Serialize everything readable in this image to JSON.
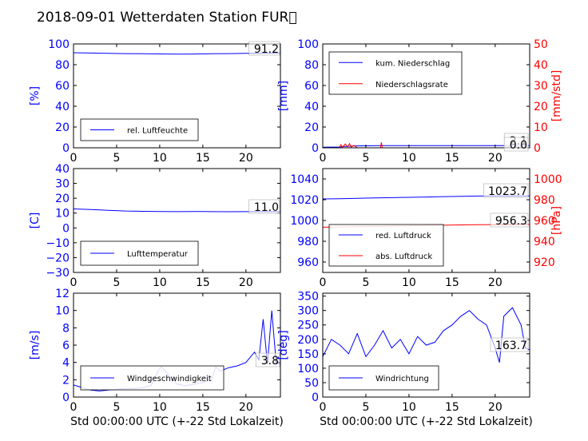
{
  "figure": {
    "title": "2018-09-01 Wetterdaten Station FUR\u0000",
    "xlabel": "Std 00:00:00 UTC (+-22 Std Lokalzeit)"
  },
  "colors": {
    "primary": "#0000ff",
    "secondary": "#ff0000",
    "axis": "#000000"
  },
  "chart_data": [
    {
      "type": "line",
      "panel": "top-left",
      "xlim": [
        0,
        24
      ],
      "xticks": [
        "0",
        "5",
        "10",
        "15",
        "20"
      ],
      "ylabel": "[%]",
      "ylim": [
        0,
        100
      ],
      "yticks": [
        "0",
        "20",
        "40",
        "60",
        "80",
        "100"
      ],
      "series": [
        {
          "name": "rel. Luftfeuchte",
          "color": "#0000ff",
          "x": [
            0,
            2,
            4,
            6,
            8,
            10,
            12,
            14,
            16,
            18,
            20,
            22,
            24
          ],
          "y": [
            91.5,
            91.2,
            90.9,
            90.7,
            90.6,
            90.4,
            90.2,
            90.3,
            90.5,
            90.7,
            90.9,
            91.1,
            91.2
          ]
        }
      ],
      "annotations": [
        "91.2"
      ],
      "legend": "lower-left"
    },
    {
      "type": "line",
      "panel": "top-right",
      "xlim": [
        0,
        24
      ],
      "xticks": [
        "0",
        "5",
        "10",
        "15",
        "20"
      ],
      "ylabel": "[mm]",
      "ylim": [
        0,
        100
      ],
      "yticks": [
        "0",
        "20",
        "40",
        "60",
        "80",
        "100"
      ],
      "y2label": "[mm/std]",
      "y2lim": [
        0,
        50
      ],
      "y2ticks": [
        "0",
        "10",
        "20",
        "30",
        "40",
        "50"
      ],
      "series": [
        {
          "name": "kum. Niederschlag",
          "color": "#0000ff",
          "axis": "left",
          "x": [
            0,
            2,
            2.5,
            3,
            3.5,
            5,
            6.8,
            8,
            12,
            16,
            20,
            24
          ],
          "y": [
            0.5,
            0.8,
            1.2,
            1.5,
            1.7,
            1.9,
            2.1,
            2.1,
            2.1,
            2.1,
            2.1,
            2.1
          ]
        },
        {
          "name": "Niederschlagsrate",
          "color": "#ff0000",
          "axis": "right",
          "x": [
            0,
            1.9,
            2.1,
            2.3,
            2.6,
            2.9,
            3.1,
            3.3,
            3.6,
            4.0,
            6.7,
            6.8,
            6.9,
            7.2,
            10,
            15,
            20,
            24
          ],
          "y": [
            0,
            0,
            1.5,
            0.3,
            1.8,
            0.5,
            2.0,
            0.4,
            1.2,
            0,
            0,
            2.6,
            0,
            0,
            0,
            0,
            0,
            0
          ]
        }
      ],
      "annotations": [
        "2.1",
        "0.0"
      ],
      "legend": "upper-left"
    },
    {
      "type": "line",
      "panel": "middle-left",
      "xlim": [
        0,
        24
      ],
      "xticks": [
        "0",
        "5",
        "10",
        "15",
        "20"
      ],
      "ylabel": "[C]",
      "ylim": [
        -30,
        40
      ],
      "yticks": [
        "−30",
        "−20",
        "−10",
        "0",
        "10",
        "20",
        "30",
        "40"
      ],
      "series": [
        {
          "name": "Lufttemperatur",
          "color": "#0000ff",
          "x": [
            0,
            2,
            4,
            6,
            8,
            10,
            12,
            14,
            16,
            18,
            20,
            22,
            24
          ],
          "y": [
            12.8,
            12.4,
            11.9,
            11.4,
            11.2,
            11.1,
            11.0,
            11.1,
            11.0,
            10.9,
            11.0,
            11.0,
            11.0
          ]
        }
      ],
      "annotations": [
        "11.0"
      ],
      "legend": "lower-left"
    },
    {
      "type": "line",
      "panel": "middle-right",
      "xlim": [
        0,
        24
      ],
      "xticks": [
        "0",
        "5",
        "10",
        "15",
        "20"
      ],
      "ylim": [
        950,
        1050
      ],
      "yticks": [
        "960",
        "980",
        "1000",
        "1020",
        "1040"
      ],
      "y2label": "[hPa]",
      "y2lim": [
        910,
        1010
      ],
      "y2ticks": [
        "920",
        "940",
        "960",
        "980",
        "1000"
      ],
      "series": [
        {
          "name": "red. Luftdruck",
          "color": "#0000ff",
          "axis": "left",
          "x": [
            0,
            2,
            4,
            6,
            8,
            10,
            12,
            14,
            16,
            18,
            20,
            22,
            24
          ],
          "y": [
            1020.8,
            1021.0,
            1021.3,
            1021.7,
            1022.0,
            1022.3,
            1022.6,
            1023.0,
            1023.3,
            1023.5,
            1023.6,
            1023.7,
            1023.7
          ]
        },
        {
          "name": "abs. Luftdruck",
          "color": "#ff0000",
          "axis": "right",
          "x": [
            0,
            2,
            4,
            6,
            8,
            10,
            12,
            14,
            16,
            18,
            20,
            22,
            24
          ],
          "y": [
            953.5,
            953.8,
            954.0,
            954.3,
            954.6,
            954.9,
            955.2,
            955.5,
            955.8,
            956.0,
            956.1,
            956.2,
            956.3
          ]
        }
      ],
      "annotations": [
        "1023.7",
        "956.3"
      ],
      "legend": "lower-left"
    },
    {
      "type": "line",
      "panel": "bottom-left",
      "xlabel": "Std 00:00:00 UTC (+-22 Std Lokalzeit)",
      "xlim": [
        0,
        24
      ],
      "xticks": [
        "0",
        "5",
        "10",
        "15",
        "20"
      ],
      "ylabel": "[m/s]",
      "ylim": [
        0,
        12
      ],
      "yticks": [
        "0",
        "2",
        "4",
        "6",
        "8",
        "10",
        "12"
      ],
      "series": [
        {
          "name": "Windgeschwindigkeit",
          "color": "#0000ff",
          "x": [
            0,
            1,
            2,
            3,
            4,
            5,
            6,
            7,
            8,
            9,
            9.8,
            10.2,
            11,
            12,
            13,
            14,
            15,
            16,
            16.5,
            17,
            18,
            19,
            20,
            21,
            21.5,
            22,
            22.5,
            23,
            23.5,
            24
          ],
          "y": [
            1.4,
            1.1,
            0.8,
            0.7,
            0.8,
            0.9,
            1.0,
            1.0,
            1.1,
            1.3,
            3.0,
            3.5,
            2.6,
            1.5,
            1.3,
            1.5,
            1.7,
            2.0,
            3.5,
            3.0,
            3.4,
            3.6,
            4.0,
            5.2,
            4.3,
            9.0,
            3.8,
            10.0,
            4.0,
            3.8
          ]
        }
      ],
      "annotations": [
        "3.8"
      ],
      "legend": "lower-left"
    },
    {
      "type": "line",
      "panel": "bottom-right",
      "xlabel": "Std 00:00:00 UTC (+-22 Std Lokalzeit)",
      "xlim": [
        0,
        24
      ],
      "xticks": [
        "0",
        "5",
        "10",
        "15",
        "20"
      ],
      "ylabel": "[deg]",
      "ylim": [
        0,
        360
      ],
      "yticks": [
        "0",
        "50",
        "100",
        "150",
        "200",
        "250",
        "300",
        "350"
      ],
      "series": [
        {
          "name": "Windrichtung",
          "color": "#0000ff",
          "x": [
            0,
            1,
            2,
            3,
            4,
            5,
            6,
            7,
            8,
            9,
            10,
            11,
            12,
            13,
            14,
            15,
            16,
            17,
            18,
            19,
            20,
            20.5,
            21,
            22,
            23,
            23.5,
            24
          ],
          "y": [
            140,
            200,
            180,
            150,
            220,
            140,
            180,
            230,
            170,
            200,
            150,
            210,
            180,
            190,
            230,
            250,
            280,
            300,
            270,
            250,
            170,
            120,
            280,
            310,
            250,
            170,
            163.7
          ]
        }
      ],
      "annotations": [
        "163.7"
      ],
      "legend": "lower-left"
    }
  ]
}
